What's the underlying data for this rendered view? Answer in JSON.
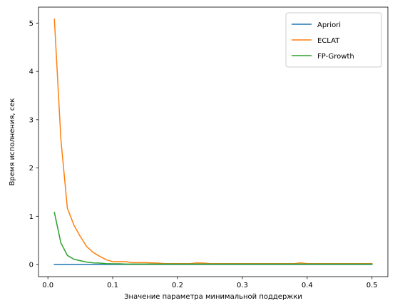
{
  "chart_data": {
    "type": "line",
    "title": "",
    "xlabel": "Значение параметра минимальной поддержки",
    "ylabel": "Время исполнения, сек",
    "xlim": [
      -0.0145,
      0.5245
    ],
    "ylim": [
      -0.25,
      5.33
    ],
    "xticks": [
      0.0,
      0.1,
      0.2,
      0.3,
      0.4,
      0.5
    ],
    "xtick_labels": [
      "0.0",
      "0.1",
      "0.2",
      "0.3",
      "0.4",
      "0.5"
    ],
    "yticks": [
      0,
      1,
      2,
      3,
      4,
      5
    ],
    "ytick_labels": [
      "0",
      "1",
      "2",
      "3",
      "4",
      "5"
    ],
    "grid": false,
    "legend_position": "top-right",
    "x": [
      0.01,
      0.02,
      0.03,
      0.04,
      0.05,
      0.06,
      0.07,
      0.08,
      0.09,
      0.1,
      0.11,
      0.12,
      0.13,
      0.14,
      0.15,
      0.16,
      0.17,
      0.18,
      0.19,
      0.2,
      0.21,
      0.22,
      0.23,
      0.24,
      0.25,
      0.26,
      0.27,
      0.28,
      0.29,
      0.3,
      0.31,
      0.32,
      0.33,
      0.34,
      0.35,
      0.36,
      0.37,
      0.38,
      0.39,
      0.4,
      0.41,
      0.42,
      0.43,
      0.44,
      0.45,
      0.46,
      0.47,
      0.48,
      0.49,
      0.5
    ],
    "series": [
      {
        "name": "Apriori",
        "color": "#1f77b4",
        "values": [
          0.003,
          0.003,
          0.003,
          0.003,
          0.003,
          0.003,
          0.003,
          0.003,
          0.003,
          0.003,
          0.003,
          0.003,
          0.003,
          0.003,
          0.003,
          0.003,
          0.003,
          0.003,
          0.003,
          0.003,
          0.003,
          0.003,
          0.003,
          0.003,
          0.003,
          0.003,
          0.003,
          0.003,
          0.003,
          0.003,
          0.003,
          0.003,
          0.003,
          0.003,
          0.003,
          0.003,
          0.003,
          0.003,
          0.003,
          0.003,
          0.003,
          0.003,
          0.003,
          0.003,
          0.003,
          0.003,
          0.003,
          0.003,
          0.003,
          0.003
        ]
      },
      {
        "name": "ECLAT",
        "color": "#ff7f0e",
        "values": [
          5.08,
          2.6,
          1.17,
          0.82,
          0.58,
          0.37,
          0.25,
          0.17,
          0.1,
          0.06,
          0.06,
          0.06,
          0.04,
          0.04,
          0.04,
          0.035,
          0.03,
          0.02,
          0.02,
          0.02,
          0.02,
          0.02,
          0.035,
          0.03,
          0.02,
          0.02,
          0.02,
          0.02,
          0.02,
          0.02,
          0.02,
          0.02,
          0.02,
          0.02,
          0.02,
          0.02,
          0.02,
          0.02,
          0.035,
          0.02,
          0.02,
          0.02,
          0.02,
          0.02,
          0.02,
          0.02,
          0.02,
          0.02,
          0.02,
          0.02
        ]
      },
      {
        "name": "FP-Growth",
        "color": "#2ca02c",
        "values": [
          1.08,
          0.45,
          0.19,
          0.11,
          0.08,
          0.05,
          0.035,
          0.03,
          0.02,
          0.015,
          0.015,
          0.01,
          0.01,
          0.01,
          0.01,
          0.01,
          0.01,
          0.01,
          0.01,
          0.01,
          0.01,
          0.01,
          0.01,
          0.01,
          0.01,
          0.01,
          0.01,
          0.01,
          0.01,
          0.01,
          0.01,
          0.01,
          0.01,
          0.01,
          0.01,
          0.01,
          0.01,
          0.01,
          0.01,
          0.01,
          0.01,
          0.01,
          0.01,
          0.01,
          0.01,
          0.01,
          0.01,
          0.01,
          0.01,
          0.01
        ]
      }
    ]
  }
}
